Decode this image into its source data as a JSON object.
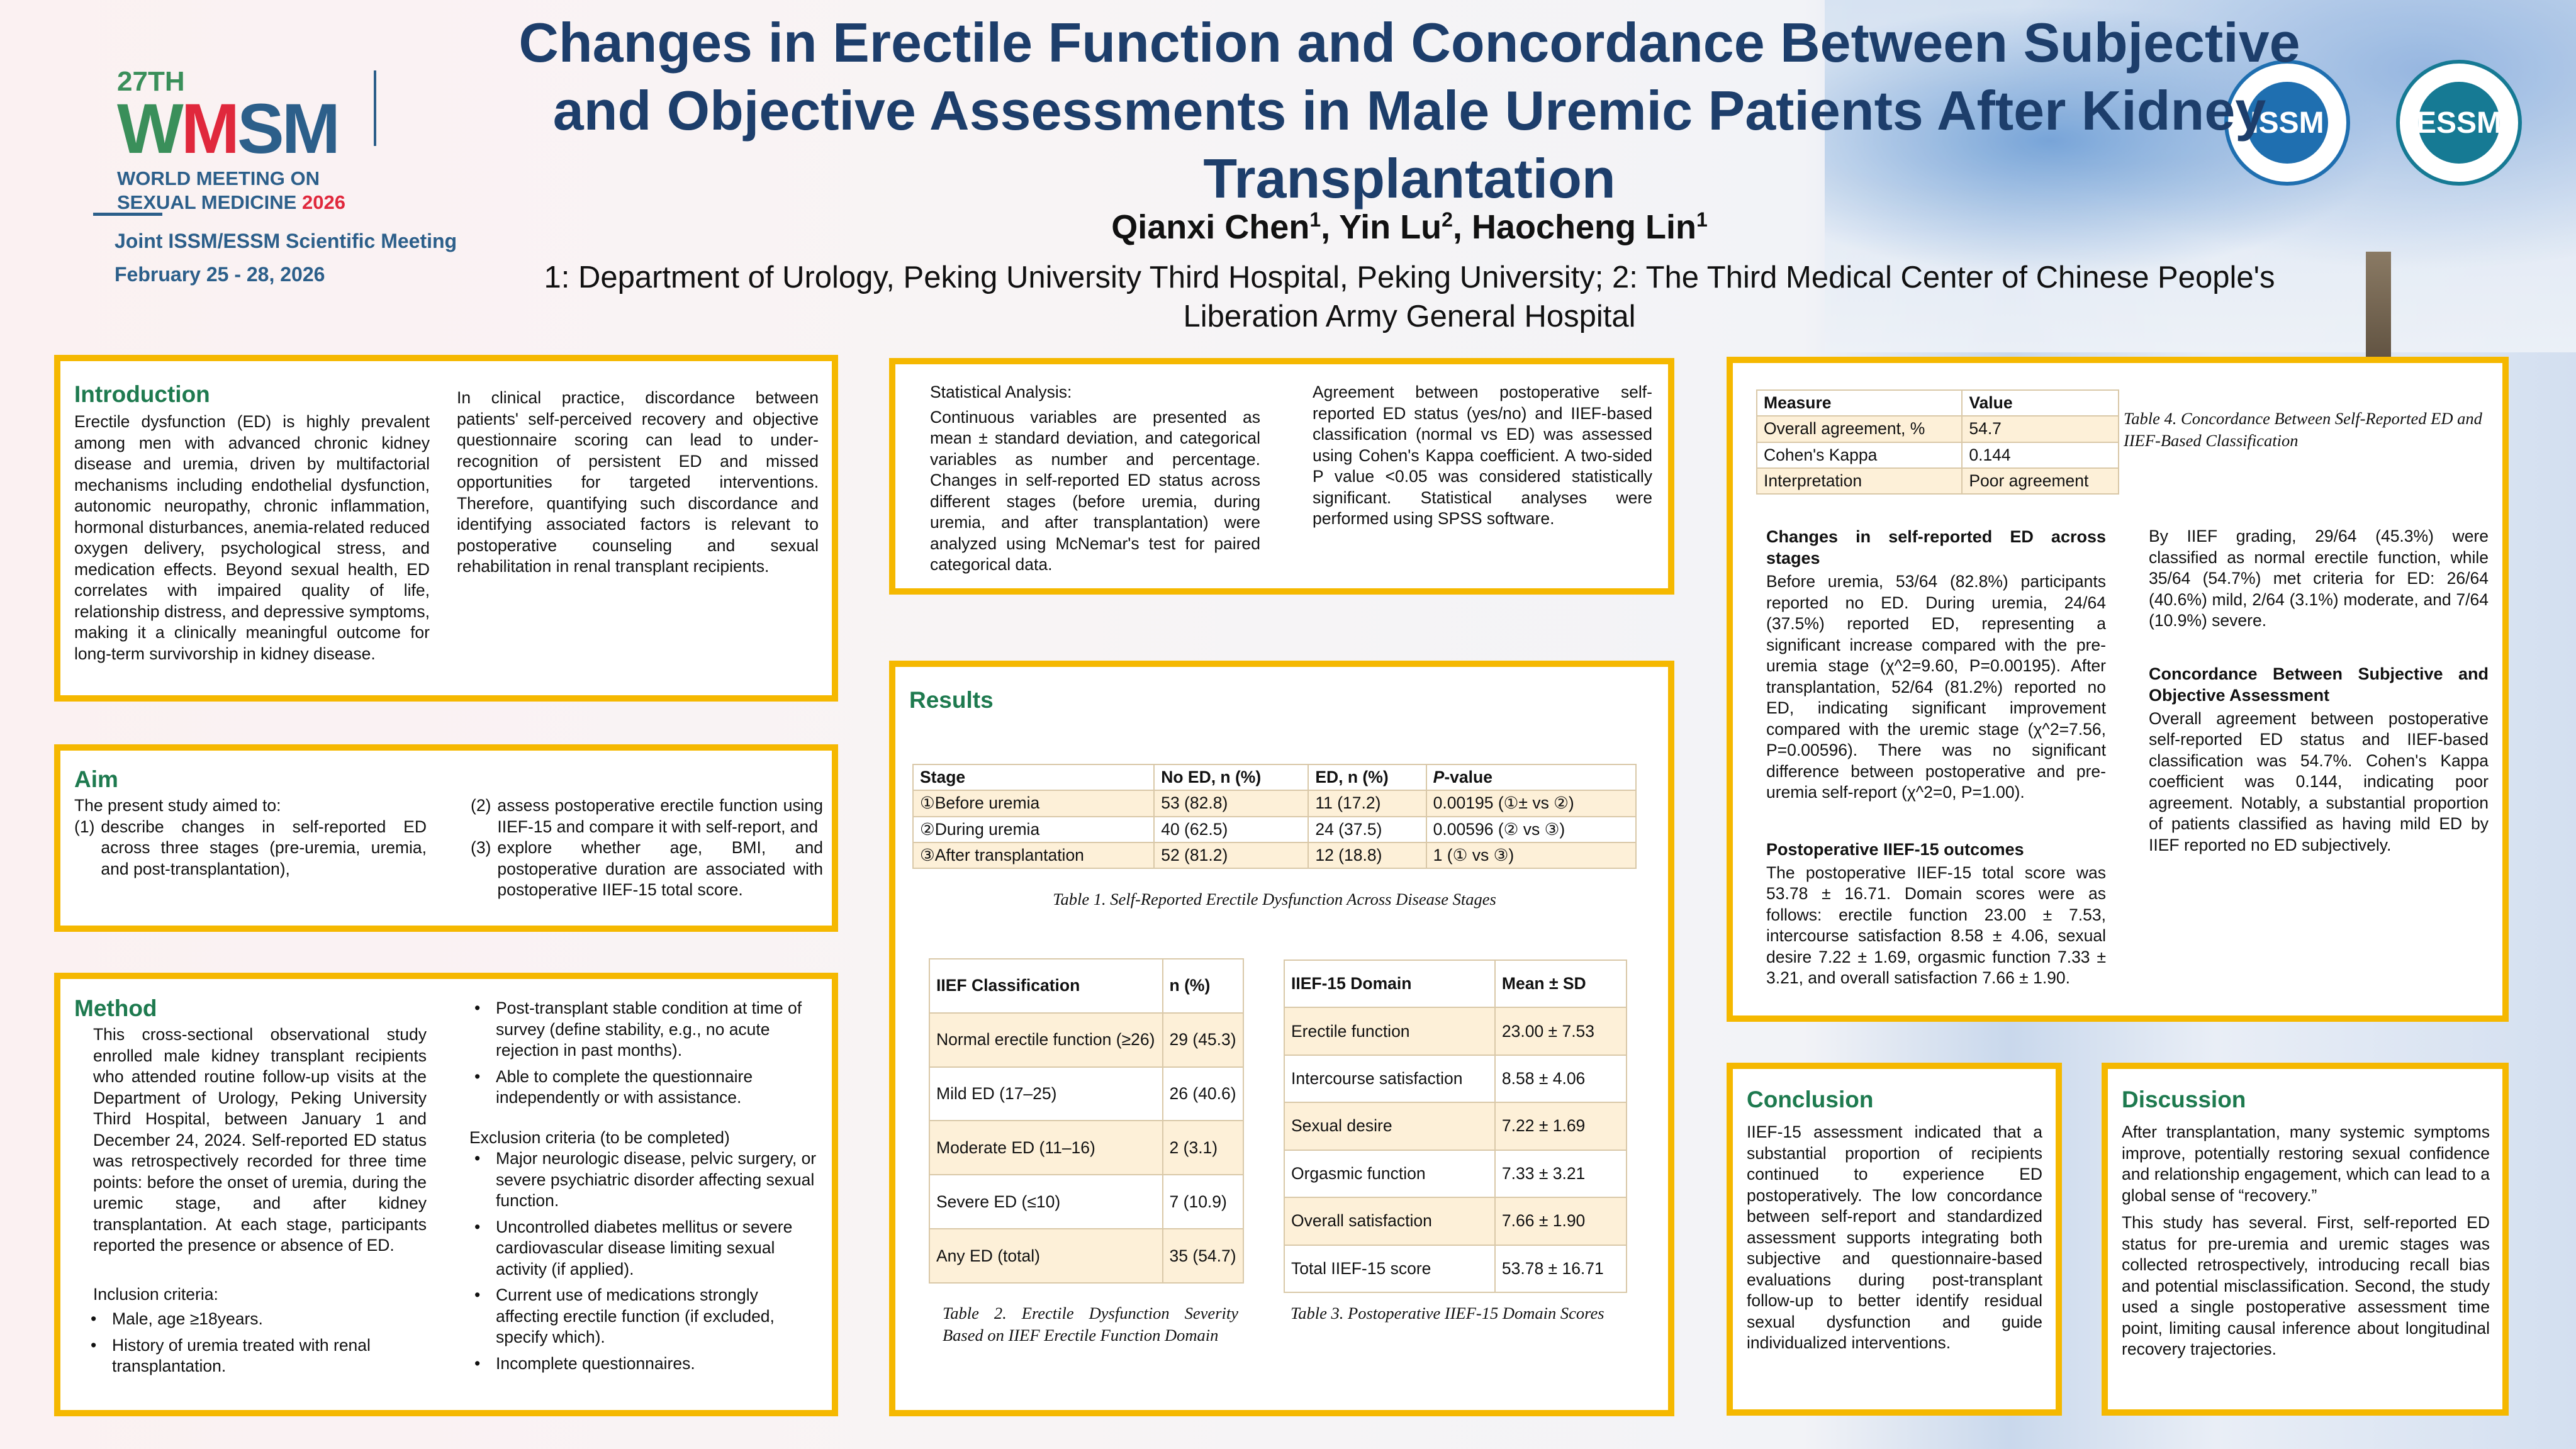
{
  "header": {
    "title": "Changes in Erectile Function and Concordance Between Subjective and Objective Assessments in Male Uremic Patients After Kidney Transplantation",
    "authors": [
      {
        "name": "Qianxi Chen",
        "sup": "1"
      },
      {
        "name": "Yin Lu",
        "sup": "2"
      },
      {
        "name": "Haocheng Lin",
        "sup": "1"
      }
    ],
    "affiliations": "1: Department of Urology, Peking University Third Hospital, Peking University; 2: The Third Medical Center of Chinese People's Liberation Army General Hospital"
  },
  "conference": {
    "edition": "27TH",
    "logo_w": "W",
    "logo_m": "M",
    "logo_sm": "SM",
    "name_line1": "WORLD MEETING ON",
    "name_line2": "SEXUAL MEDICINE",
    "year": "2026",
    "joint": "Joint ISSM/ESSM Scientific Meeting",
    "dates": "February 25 - 28, 2026",
    "seal_issm": "ISSM",
    "seal_essm": "ESSM"
  },
  "colors": {
    "accent_border": "#f5b800",
    "heading": "#1e7a4f",
    "title": "#1d3e6b"
  },
  "introduction": {
    "heading": "Introduction",
    "p1": "Erectile dysfunction (ED) is highly prevalent among men with advanced chronic kidney disease and uremia, driven by multifactorial mechanisms including endothelial dysfunction, autonomic neuropathy, chronic inflammation, hormonal disturbances, anemia-related reduced oxygen delivery, psychological stress, and medication effects. Beyond sexual health, ED correlates with impaired quality of life, relationship distress, and depressive symptoms, making it a clinically meaningful outcome for long-term survivorship in kidney disease.",
    "p2": "In clinical practice, discordance between patients' self-perceived recovery and objective questionnaire scoring can lead to under-recognition of persistent ED and missed opportunities for targeted interventions. Therefore, quantifying such discordance and identifying associated factors is relevant to postoperative counseling and sexual rehabilitation in renal transplant recipients."
  },
  "aim": {
    "heading": "Aim",
    "intro": "The present study aimed to:",
    "items": [
      {
        "n": "(1)",
        "text": "describe changes in self-reported ED across three stages (pre-uremia, uremia, and post-transplantation),"
      },
      {
        "n": "(2)",
        "text": "assess postoperative erectile function using IIEF-15 and compare it with self-report, and"
      },
      {
        "n": "(3)",
        "text": "explore whether age, BMI, and postoperative duration are associated with postoperative IIEF-15 total score."
      }
    ]
  },
  "method": {
    "heading": "Method",
    "p1": "This cross-sectional observational study enrolled male kidney transplant recipients who attended routine follow-up visits at the Department of Urology, Peking University Third Hospital, between January 1 and December 24, 2024. Self-reported ED status was retrospectively recorded for three time points: before the onset of uremia, during the uremic stage, and after kidney transplantation. At each stage, participants reported the presence or absence of ED.",
    "inclusion_label": "Inclusion criteria:",
    "inclusion": [
      "Male, age ≥18years.",
      "History of uremia treated with renal transplantation.",
      "Post-transplant stable condition at time of survey (define stability, e.g., no acute rejection in past months).",
      "Able to complete the questionnaire independently or with assistance."
    ],
    "exclusion_label": "Exclusion criteria (to be completed)",
    "exclusion": [
      "Major neurologic disease, pelvic surgery, or severe psychiatric disorder affecting sexual function.",
      "Uncontrolled diabetes mellitus or severe cardiovascular disease limiting sexual activity (if applied).",
      "Current use of medications strongly affecting erectile function (if excluded, specify which).",
      "Incomplete questionnaires."
    ]
  },
  "stats": {
    "p1": "Statistical Analysis:",
    "p2": "Continuous variables are presented as mean ± standard deviation, and categorical variables as number and percentage. Changes in self-reported ED status across different stages (before uremia, during uremia, and after transplantation) were analyzed using McNemar's test for paired categorical data.",
    "p3": "Agreement between postoperative self-reported ED status (yes/no) and IIEF-based classification (normal vs ED) was assessed using Cohen's Kappa coefficient. A two-sided P value <0.05 was considered statistically significant. Statistical analyses were performed using SPSS software."
  },
  "results": {
    "heading": "Results",
    "table1": {
      "headers": [
        "Stage",
        "No ED, n (%)",
        "ED, n (%)",
        "P-value"
      ],
      "rows": [
        [
          "①Before uremia",
          "53 (82.8)",
          "11 (17.2)",
          "0.00195 (①± vs ②)"
        ],
        [
          "②During uremia",
          "40 (62.5)",
          "24 (37.5)",
          "0.00596 (② vs ③)"
        ],
        [
          "③After transplantation",
          "52 (81.2)",
          "12 (18.8)",
          "1 (① vs ③)"
        ]
      ],
      "caption": "Table 1. Self-Reported Erectile Dysfunction Across Disease Stages"
    },
    "table2": {
      "headers": [
        "IIEF Classification",
        "n (%)"
      ],
      "rows": [
        [
          "Normal erectile function (≥26)",
          "29 (45.3)"
        ],
        [
          "Mild ED (17–25)",
          "26 (40.6)"
        ],
        [
          "Moderate ED (11–16)",
          "2 (3.1)"
        ],
        [
          "Severe ED (≤10)",
          "7 (10.9)"
        ],
        [
          "Any ED (total)",
          "35 (54.7)"
        ]
      ],
      "caption": "Table 2. Erectile Dysfunction Severity Based on IIEF Erectile Function Domain"
    },
    "table3": {
      "headers": [
        "IIEF-15 Domain",
        "Mean ± SD"
      ],
      "rows": [
        [
          "Erectile function",
          "23.00 ± 7.53"
        ],
        [
          "Intercourse satisfaction",
          "8.58 ± 4.06"
        ],
        [
          "Sexual desire",
          "7.22 ± 1.69"
        ],
        [
          "Orgasmic function",
          "7.33 ± 3.21"
        ],
        [
          "Overall satisfaction",
          "7.66 ± 1.90"
        ],
        [
          "Total IIEF-15 score",
          "53.78 ± 16.71"
        ]
      ],
      "caption": "Table 3. Postoperative IIEF-15 Domain Scores"
    }
  },
  "findings": {
    "table4": {
      "headers": [
        "Measure",
        "Value"
      ],
      "rows": [
        [
          "Overall agreement, %",
          "54.7"
        ],
        [
          "Cohen's Kappa",
          "0.144"
        ],
        [
          "Interpretation",
          "Poor agreement"
        ]
      ],
      "caption": "Table 4. Concordance Between Self-Reported ED and IIEF-Based Classification"
    },
    "s1_title": "Changes in self-reported ED across stages",
    "s1_text": "Before uremia, 53/64 (82.8%) participants reported no ED. During uremia, 24/64 (37.5%) reported ED, representing a significant increase compared with the pre-uremia stage (χ^2=9.60, P=0.00195). After transplantation, 52/64 (81.2%) reported no ED, indicating significant improvement compared with the uremic stage (χ^2=7.56, P=0.00596). There was no significant difference between postoperative and pre-uremia self-report (χ^2=0, P=1.00).",
    "s2_title": "Postoperative IIEF-15 outcomes",
    "s2_text": "The postoperative IIEF-15 total score was 53.78 ± 16.71. Domain scores were as follows: erectile function 23.00 ± 7.53, intercourse satisfaction 8.58 ± 4.06, sexual desire 7.22 ± 1.69, orgasmic function 7.33 ± 3.21, and overall satisfaction 7.66 ± 1.90.",
    "s3_text": "By IIEF grading, 29/64 (45.3%) were classified as normal erectile function, while 35/64 (54.7%) met criteria for ED: 26/64 (40.6%) mild, 2/64 (3.1%) moderate, and 7/64 (10.9%) severe.",
    "s4_title": "Concordance Between Subjective and Objective Assessment",
    "s4_text": "Overall agreement between postoperative self-reported ED status and IIEF-based classification was 54.7%. Cohen's Kappa coefficient was 0.144, indicating poor agreement. Notably, a substantial proportion of patients classified as having mild ED by IIEF reported no ED subjectively."
  },
  "conclusion": {
    "heading": "Conclusion",
    "text": "IIEF-15 assessment indicated that a substantial proportion of recipients continued to experience ED postoperatively. The low concordance between self-report and standardized assessment supports integrating both subjective and questionnaire-based evaluations during post-transplant follow-up to better identify residual sexual dysfunction and guide individualized interventions."
  },
  "discussion": {
    "heading": "Discussion",
    "p1": "After transplantation, many systemic symptoms improve, potentially restoring sexual confidence and relationship engagement, which can lead to a global sense of “recovery.”",
    "p2": "This study has several. First, self-reported ED status for pre-uremia and uremic stages was collected retrospectively, introducing recall bias and potential misclassification. Second, the study used a single postoperative assessment time point, limiting causal inference about longitudinal recovery trajectories."
  }
}
